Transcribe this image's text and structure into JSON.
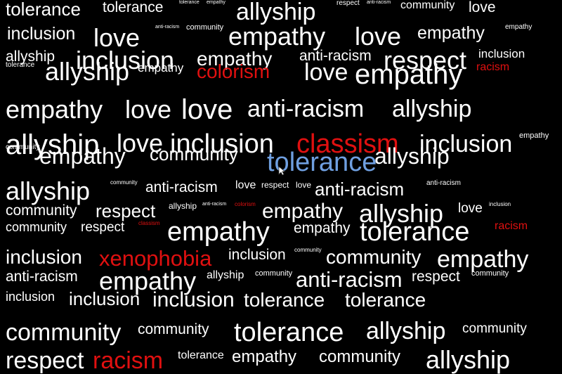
{
  "colors": {
    "background": "#000000",
    "neutral": "#ffffff",
    "negative": "#e01010",
    "highlight": "#6f9fe0"
  },
  "words": [
    {
      "text": "tolerance",
      "tone": "neutral"
    },
    {
      "text": "tolerance",
      "tone": "neutral"
    },
    {
      "text": "tolerance",
      "tone": "neutral"
    },
    {
      "text": "empathy",
      "tone": "neutral"
    },
    {
      "text": "allyship",
      "tone": "neutral"
    },
    {
      "text": "respect",
      "tone": "neutral"
    },
    {
      "text": "anti-racism",
      "tone": "neutral"
    },
    {
      "text": "community",
      "tone": "neutral"
    },
    {
      "text": "love",
      "tone": "neutral"
    },
    {
      "text": "inclusion",
      "tone": "neutral"
    },
    {
      "text": "love",
      "tone": "neutral"
    },
    {
      "text": "anti-racism",
      "tone": "neutral"
    },
    {
      "text": "community",
      "tone": "neutral"
    },
    {
      "text": "empathy",
      "tone": "neutral"
    },
    {
      "text": "love",
      "tone": "neutral"
    },
    {
      "text": "empathy",
      "tone": "neutral"
    },
    {
      "text": "empathy",
      "tone": "neutral"
    },
    {
      "text": "allyship",
      "tone": "neutral"
    },
    {
      "text": "inclusion",
      "tone": "neutral"
    },
    {
      "text": "empathy",
      "tone": "neutral"
    },
    {
      "text": "anti-racism",
      "tone": "neutral"
    },
    {
      "text": "respect",
      "tone": "neutral"
    },
    {
      "text": "inclusion",
      "tone": "neutral"
    },
    {
      "text": "tolerance",
      "tone": "neutral"
    },
    {
      "text": "allyship",
      "tone": "neutral"
    },
    {
      "text": "empathy",
      "tone": "neutral"
    },
    {
      "text": "colorism",
      "tone": "negative"
    },
    {
      "text": "love",
      "tone": "neutral"
    },
    {
      "text": "empathy",
      "tone": "neutral"
    },
    {
      "text": "racism",
      "tone": "negative"
    },
    {
      "text": "empathy",
      "tone": "neutral"
    },
    {
      "text": "love",
      "tone": "neutral"
    },
    {
      "text": "love",
      "tone": "neutral"
    },
    {
      "text": "anti-racism",
      "tone": "neutral"
    },
    {
      "text": "allyship",
      "tone": "neutral"
    },
    {
      "text": "allyship",
      "tone": "neutral"
    },
    {
      "text": "love",
      "tone": "neutral"
    },
    {
      "text": "inclusion",
      "tone": "neutral"
    },
    {
      "text": "classism",
      "tone": "negative"
    },
    {
      "text": "inclusion",
      "tone": "neutral"
    },
    {
      "text": "empathy",
      "tone": "neutral"
    },
    {
      "text": "community",
      "tone": "neutral"
    },
    {
      "text": "empathy",
      "tone": "neutral"
    },
    {
      "text": "community",
      "tone": "neutral"
    },
    {
      "text": "tolerance",
      "tone": "highlight"
    },
    {
      "text": "allyship",
      "tone": "neutral"
    },
    {
      "text": "allyship",
      "tone": "neutral"
    },
    {
      "text": "community",
      "tone": "neutral"
    },
    {
      "text": "anti-racism",
      "tone": "neutral"
    },
    {
      "text": "love",
      "tone": "neutral"
    },
    {
      "text": "respect",
      "tone": "neutral"
    },
    {
      "text": "love",
      "tone": "neutral"
    },
    {
      "text": "anti-racism",
      "tone": "neutral"
    },
    {
      "text": "anti-racism",
      "tone": "neutral"
    },
    {
      "text": "community",
      "tone": "neutral"
    },
    {
      "text": "respect",
      "tone": "neutral"
    },
    {
      "text": "allyship",
      "tone": "neutral"
    },
    {
      "text": "anti-racism",
      "tone": "neutral"
    },
    {
      "text": "colorism",
      "tone": "negative"
    },
    {
      "text": "empathy",
      "tone": "neutral"
    },
    {
      "text": "allyship",
      "tone": "neutral"
    },
    {
      "text": "love",
      "tone": "neutral"
    },
    {
      "text": "inclusion",
      "tone": "neutral"
    },
    {
      "text": "community",
      "tone": "neutral"
    },
    {
      "text": "respect",
      "tone": "neutral"
    },
    {
      "text": "classism",
      "tone": "negative"
    },
    {
      "text": "empathy",
      "tone": "neutral"
    },
    {
      "text": "empathy",
      "tone": "neutral"
    },
    {
      "text": "tolerance",
      "tone": "neutral"
    },
    {
      "text": "racism",
      "tone": "negative"
    },
    {
      "text": "inclusion",
      "tone": "neutral"
    },
    {
      "text": "xenophobia",
      "tone": "negative"
    },
    {
      "text": "inclusion",
      "tone": "neutral"
    },
    {
      "text": "community",
      "tone": "neutral"
    },
    {
      "text": "community",
      "tone": "neutral"
    },
    {
      "text": "empathy",
      "tone": "neutral"
    },
    {
      "text": "anti-racism",
      "tone": "neutral"
    },
    {
      "text": "empathy",
      "tone": "neutral"
    },
    {
      "text": "allyship",
      "tone": "neutral"
    },
    {
      "text": "community",
      "tone": "neutral"
    },
    {
      "text": "anti-racism",
      "tone": "neutral"
    },
    {
      "text": "respect",
      "tone": "neutral"
    },
    {
      "text": "community",
      "tone": "neutral"
    },
    {
      "text": "inclusion",
      "tone": "neutral"
    },
    {
      "text": "inclusion",
      "tone": "neutral"
    },
    {
      "text": "inclusion",
      "tone": "neutral"
    },
    {
      "text": "tolerance",
      "tone": "neutral"
    },
    {
      "text": "tolerance",
      "tone": "neutral"
    },
    {
      "text": "community",
      "tone": "neutral"
    },
    {
      "text": "community",
      "tone": "neutral"
    },
    {
      "text": "tolerance",
      "tone": "neutral"
    },
    {
      "text": "allyship",
      "tone": "neutral"
    },
    {
      "text": "community",
      "tone": "neutral"
    },
    {
      "text": "respect",
      "tone": "neutral"
    },
    {
      "text": "racism",
      "tone": "negative"
    },
    {
      "text": "tolerance",
      "tone": "neutral"
    },
    {
      "text": "empathy",
      "tone": "neutral"
    },
    {
      "text": "community",
      "tone": "neutral"
    },
    {
      "text": "allyship",
      "tone": "neutral"
    }
  ],
  "cursor_icon": "mouse-pointer-icon"
}
